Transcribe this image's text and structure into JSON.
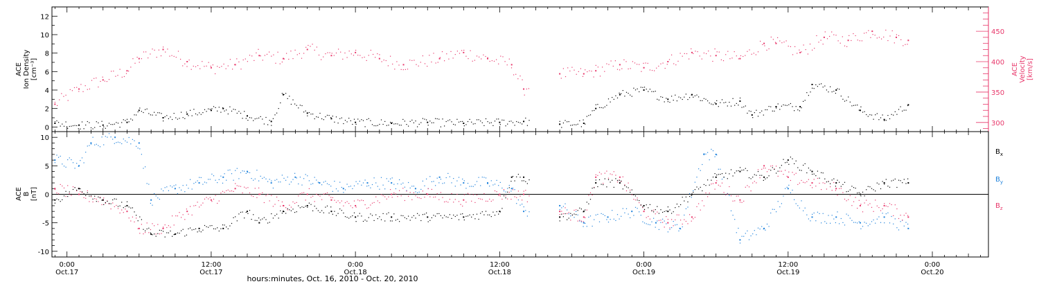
{
  "x_axis": {
    "label": "hours:minutes, Oct. 16, 2010 - Oct. 20, 2010",
    "tick_times": [
      "0:00",
      "12:00",
      "0:00",
      "12:00",
      "0:00",
      "12:00",
      "0:00"
    ],
    "tick_dates": [
      "Oct.17",
      "Oct.17",
      "Oct.18",
      "Oct.18",
      "Oct.19",
      "Oct.19",
      "Oct.20"
    ]
  },
  "colors": {
    "density": "#000000",
    "velocity": "#e8366a",
    "bx": "#000000",
    "by": "#1e82dc",
    "bz": "#e8366a",
    "axis": "#000000"
  },
  "chart_data": [
    {
      "type": "scatter",
      "title": "",
      "left_axis": {
        "label_lines": [
          "ACE",
          "Ion Density",
          "[cm⁻³]"
        ],
        "range": [
          -0.5,
          13
        ],
        "ticks": [
          0,
          2,
          4,
          6,
          8,
          10,
          12
        ]
      },
      "right_axis": {
        "label_lines": [
          "ACE",
          "Velocity",
          "[km/s]"
        ],
        "range": [
          285,
          490
        ],
        "ticks": [
          300,
          350,
          400,
          450
        ]
      },
      "x_range_hours": [
        "2010-10-16 22:45",
        "2010-10-20 04:40"
      ],
      "gap": [
        "2010-10-18 14:30",
        "2010-10-18 17:00"
      ],
      "series": [
        {
          "role": "density",
          "x": [
            "2010-10-16 23:00",
            "2010-10-17 01:00",
            "2010-10-17 03:00",
            "2010-10-17 05:00",
            "2010-10-17 06:00",
            "2010-10-17 08:00",
            "2010-10-17 10:00",
            "2010-10-17 12:00",
            "2010-10-17 13:00",
            "2010-10-17 15:00",
            "2010-10-17 17:00",
            "2010-10-17 18:00",
            "2010-10-17 20:00",
            "2010-10-17 22:00",
            "2010-10-18 00:00",
            "2010-10-18 03:00",
            "2010-10-18 06:00",
            "2010-10-18 09:00",
            "2010-10-18 12:00",
            "2010-10-18 14:00",
            "2010-10-18 17:00",
            "2010-10-18 19:00",
            "2010-10-18 20:00",
            "2010-10-18 22:00",
            "2010-10-19 00:00",
            "2010-10-19 02:00",
            "2010-10-19 04:00",
            "2010-10-19 06:00",
            "2010-10-19 08:00",
            "2010-10-19 09:00",
            "2010-10-19 11:00",
            "2010-10-19 13:00",
            "2010-10-19 14:00",
            "2010-10-19 16:00",
            "2010-10-19 18:00",
            "2010-10-19 20:00",
            "2010-10-19 22:00"
          ],
          "y": [
            0.4,
            0.2,
            0.2,
            0.5,
            1.8,
            1.0,
            1.4,
            1.8,
            2.0,
            1.2,
            0.6,
            3.5,
            1.5,
            0.9,
            0.5,
            0.4,
            0.5,
            0.4,
            0.5,
            0.6,
            0.3,
            0.4,
            2.0,
            3.5,
            4.0,
            3.0,
            3.5,
            2.5,
            2.8,
            1.3,
            2.2,
            2.2,
            4.6,
            4.0,
            1.8,
            0.8,
            2.4
          ]
        },
        {
          "role": "velocity",
          "x": [
            "2010-10-16 23:00",
            "2010-10-17 01:00",
            "2010-10-17 03:00",
            "2010-10-17 05:00",
            "2010-10-17 06:00",
            "2010-10-17 08:00",
            "2010-10-17 10:00",
            "2010-10-17 12:00",
            "2010-10-17 14:00",
            "2010-10-17 16:00",
            "2010-10-17 18:00",
            "2010-10-17 20:00",
            "2010-10-17 22:00",
            "2010-10-18 00:00",
            "2010-10-18 02:00",
            "2010-10-18 04:00",
            "2010-10-18 07:00",
            "2010-10-18 09:00",
            "2010-10-18 11:00",
            "2010-10-18 13:00",
            "2010-10-18 14:00",
            "2010-10-18 17:00",
            "2010-10-18 19:00",
            "2010-10-18 20:00",
            "2010-10-18 22:00",
            "2010-10-19 00:00",
            "2010-10-19 02:00",
            "2010-10-19 04:00",
            "2010-10-19 06:00",
            "2010-10-19 08:00",
            "2010-10-19 10:00",
            "2010-10-19 11:00",
            "2010-10-19 13:00",
            "2010-10-19 15:00",
            "2010-10-19 17:00",
            "2010-10-19 19:00",
            "2010-10-19 21:00",
            "2010-10-19 22:00"
          ],
          "y": [
            330,
            355,
            370,
            385,
            405,
            420,
            400,
            390,
            395,
            410,
            405,
            420,
            410,
            415,
            405,
            395,
            405,
            415,
            405,
            395,
            355,
            380,
            380,
            385,
            395,
            390,
            400,
            415,
            410,
            405,
            430,
            430,
            415,
            440,
            435,
            450,
            440,
            435
          ]
        }
      ]
    },
    {
      "type": "scatter",
      "title": "",
      "left_axis": {
        "label_lines": [
          "ACE",
          "B",
          "[nT]"
        ],
        "range": [
          -11,
          11
        ],
        "ticks": [
          -10,
          -5,
          0,
          5,
          10
        ]
      },
      "x_range_hours": [
        "2010-10-16 22:45",
        "2010-10-20 04:40"
      ],
      "gap": [
        "2010-10-18 14:30",
        "2010-10-18 17:00"
      ],
      "legend": {
        "placement": "right",
        "labels": [
          "Bx",
          "By",
          "Bz"
        ]
      },
      "series": [
        {
          "name": "Bx",
          "x": [
            "2010-10-16 23:00",
            "2010-10-17 01:00",
            "2010-10-17 03:00",
            "2010-10-17 05:00",
            "2010-10-17 07:00",
            "2010-10-17 09:00",
            "2010-10-17 11:00",
            "2010-10-17 13:00",
            "2010-10-17 15:00",
            "2010-10-17 16:00",
            "2010-10-17 18:00",
            "2010-10-17 20:00",
            "2010-10-17 22:00",
            "2010-10-18 00:00",
            "2010-10-18 03:00",
            "2010-10-18 06:00",
            "2010-10-18 09:00",
            "2010-10-18 12:00",
            "2010-10-18 13:00",
            "2010-10-18 14:00",
            "2010-10-18 17:00",
            "2010-10-18 19:00",
            "2010-10-18 20:00",
            "2010-10-18 22:00",
            "2010-10-19 00:00",
            "2010-10-19 02:00",
            "2010-10-19 04:00",
            "2010-10-19 06:00",
            "2010-10-19 08:00",
            "2010-10-19 10:00",
            "2010-10-19 12:00",
            "2010-10-19 14:00",
            "2010-10-19 16:00",
            "2010-10-19 18:00",
            "2010-10-19 20:00",
            "2010-10-19 22:00"
          ],
          "y": [
            -1,
            1,
            -1,
            -2,
            -7,
            -7,
            -6,
            -6,
            -3,
            -5,
            -3,
            -2,
            -3,
            -4,
            -4,
            -4,
            -4,
            -3,
            3,
            3,
            -4,
            -3,
            2,
            2,
            -2,
            -3,
            0,
            3,
            4,
            3,
            6,
            4,
            2,
            0,
            2,
            2
          ]
        },
        {
          "name": "By",
          "x": [
            "2010-10-16 23:00",
            "2010-10-17 01:00",
            "2010-10-17 02:00",
            "2010-10-17 04:00",
            "2010-10-17 06:00",
            "2010-10-17 07:00",
            "2010-10-17 09:00",
            "2010-10-17 11:00",
            "2010-10-17 13:00",
            "2010-10-17 15:00",
            "2010-10-17 17:00",
            "2010-10-17 19:00",
            "2010-10-17 21:00",
            "2010-10-17 23:00",
            "2010-10-18 01:00",
            "2010-10-18 03:00",
            "2010-10-18 05:00",
            "2010-10-18 07:00",
            "2010-10-18 09:00",
            "2010-10-18 11:00",
            "2010-10-18 13:00",
            "2010-10-18 14:00",
            "2010-10-18 17:00",
            "2010-10-18 19:00",
            "2010-10-18 21:00",
            "2010-10-18 23:00",
            "2010-10-19 01:00",
            "2010-10-19 03:00",
            "2010-10-19 05:00",
            "2010-10-19 06:00",
            "2010-10-19 08:00",
            "2010-10-19 10:00",
            "2010-10-19 12:00",
            "2010-10-19 14:00",
            "2010-10-19 16:00",
            "2010-10-19 18:00",
            "2010-10-19 20:00",
            "2010-10-19 22:00"
          ],
          "y": [
            6,
            5,
            9,
            10,
            9,
            -1,
            1,
            2,
            3,
            4,
            2,
            3,
            2,
            1,
            2,
            2,
            1,
            3,
            2,
            2,
            1,
            -3,
            -2,
            -5,
            -4,
            -3,
            -5,
            -6,
            7,
            7,
            -8,
            -6,
            1,
            -4,
            -4,
            -5,
            -4,
            -6
          ]
        },
        {
          "name": "Bz",
          "x": [
            "2010-10-16 23:00",
            "2010-10-17 01:00",
            "2010-10-17 03:00",
            "2010-10-17 05:00",
            "2010-10-17 06:00",
            "2010-10-17 08:00",
            "2010-10-17 10:00",
            "2010-10-17 12:00",
            "2010-10-17 14:00",
            "2010-10-17 16:00",
            "2010-10-17 18:00",
            "2010-10-17 20:00",
            "2010-10-17 22:00",
            "2010-10-18 00:00",
            "2010-10-18 03:00",
            "2010-10-18 06:00",
            "2010-10-18 09:00",
            "2010-10-18 12:00",
            "2010-10-18 14:00",
            "2010-10-18 17:00",
            "2010-10-18 19:00",
            "2010-10-18 20:00",
            "2010-10-18 22:00",
            "2010-10-19 00:00",
            "2010-10-19 02:00",
            "2010-10-19 04:00",
            "2010-10-19 06:00",
            "2010-10-19 08:00",
            "2010-10-19 10:00",
            "2010-10-19 12:00",
            "2010-10-19 14:00",
            "2010-10-19 16:00",
            "2010-10-19 18:00",
            "2010-10-19 20:00",
            "2010-10-19 22:00"
          ],
          "y": [
            1,
            0,
            -1,
            -3,
            -6,
            -6,
            -3,
            -1,
            1,
            0,
            -2,
            0,
            -1,
            -2,
            0,
            0,
            -1,
            0,
            0,
            -3,
            -4,
            3,
            3,
            -3,
            -5,
            -4,
            2,
            -1,
            5,
            3,
            2,
            1,
            -2,
            -2,
            -4
          ]
        }
      ]
    }
  ]
}
